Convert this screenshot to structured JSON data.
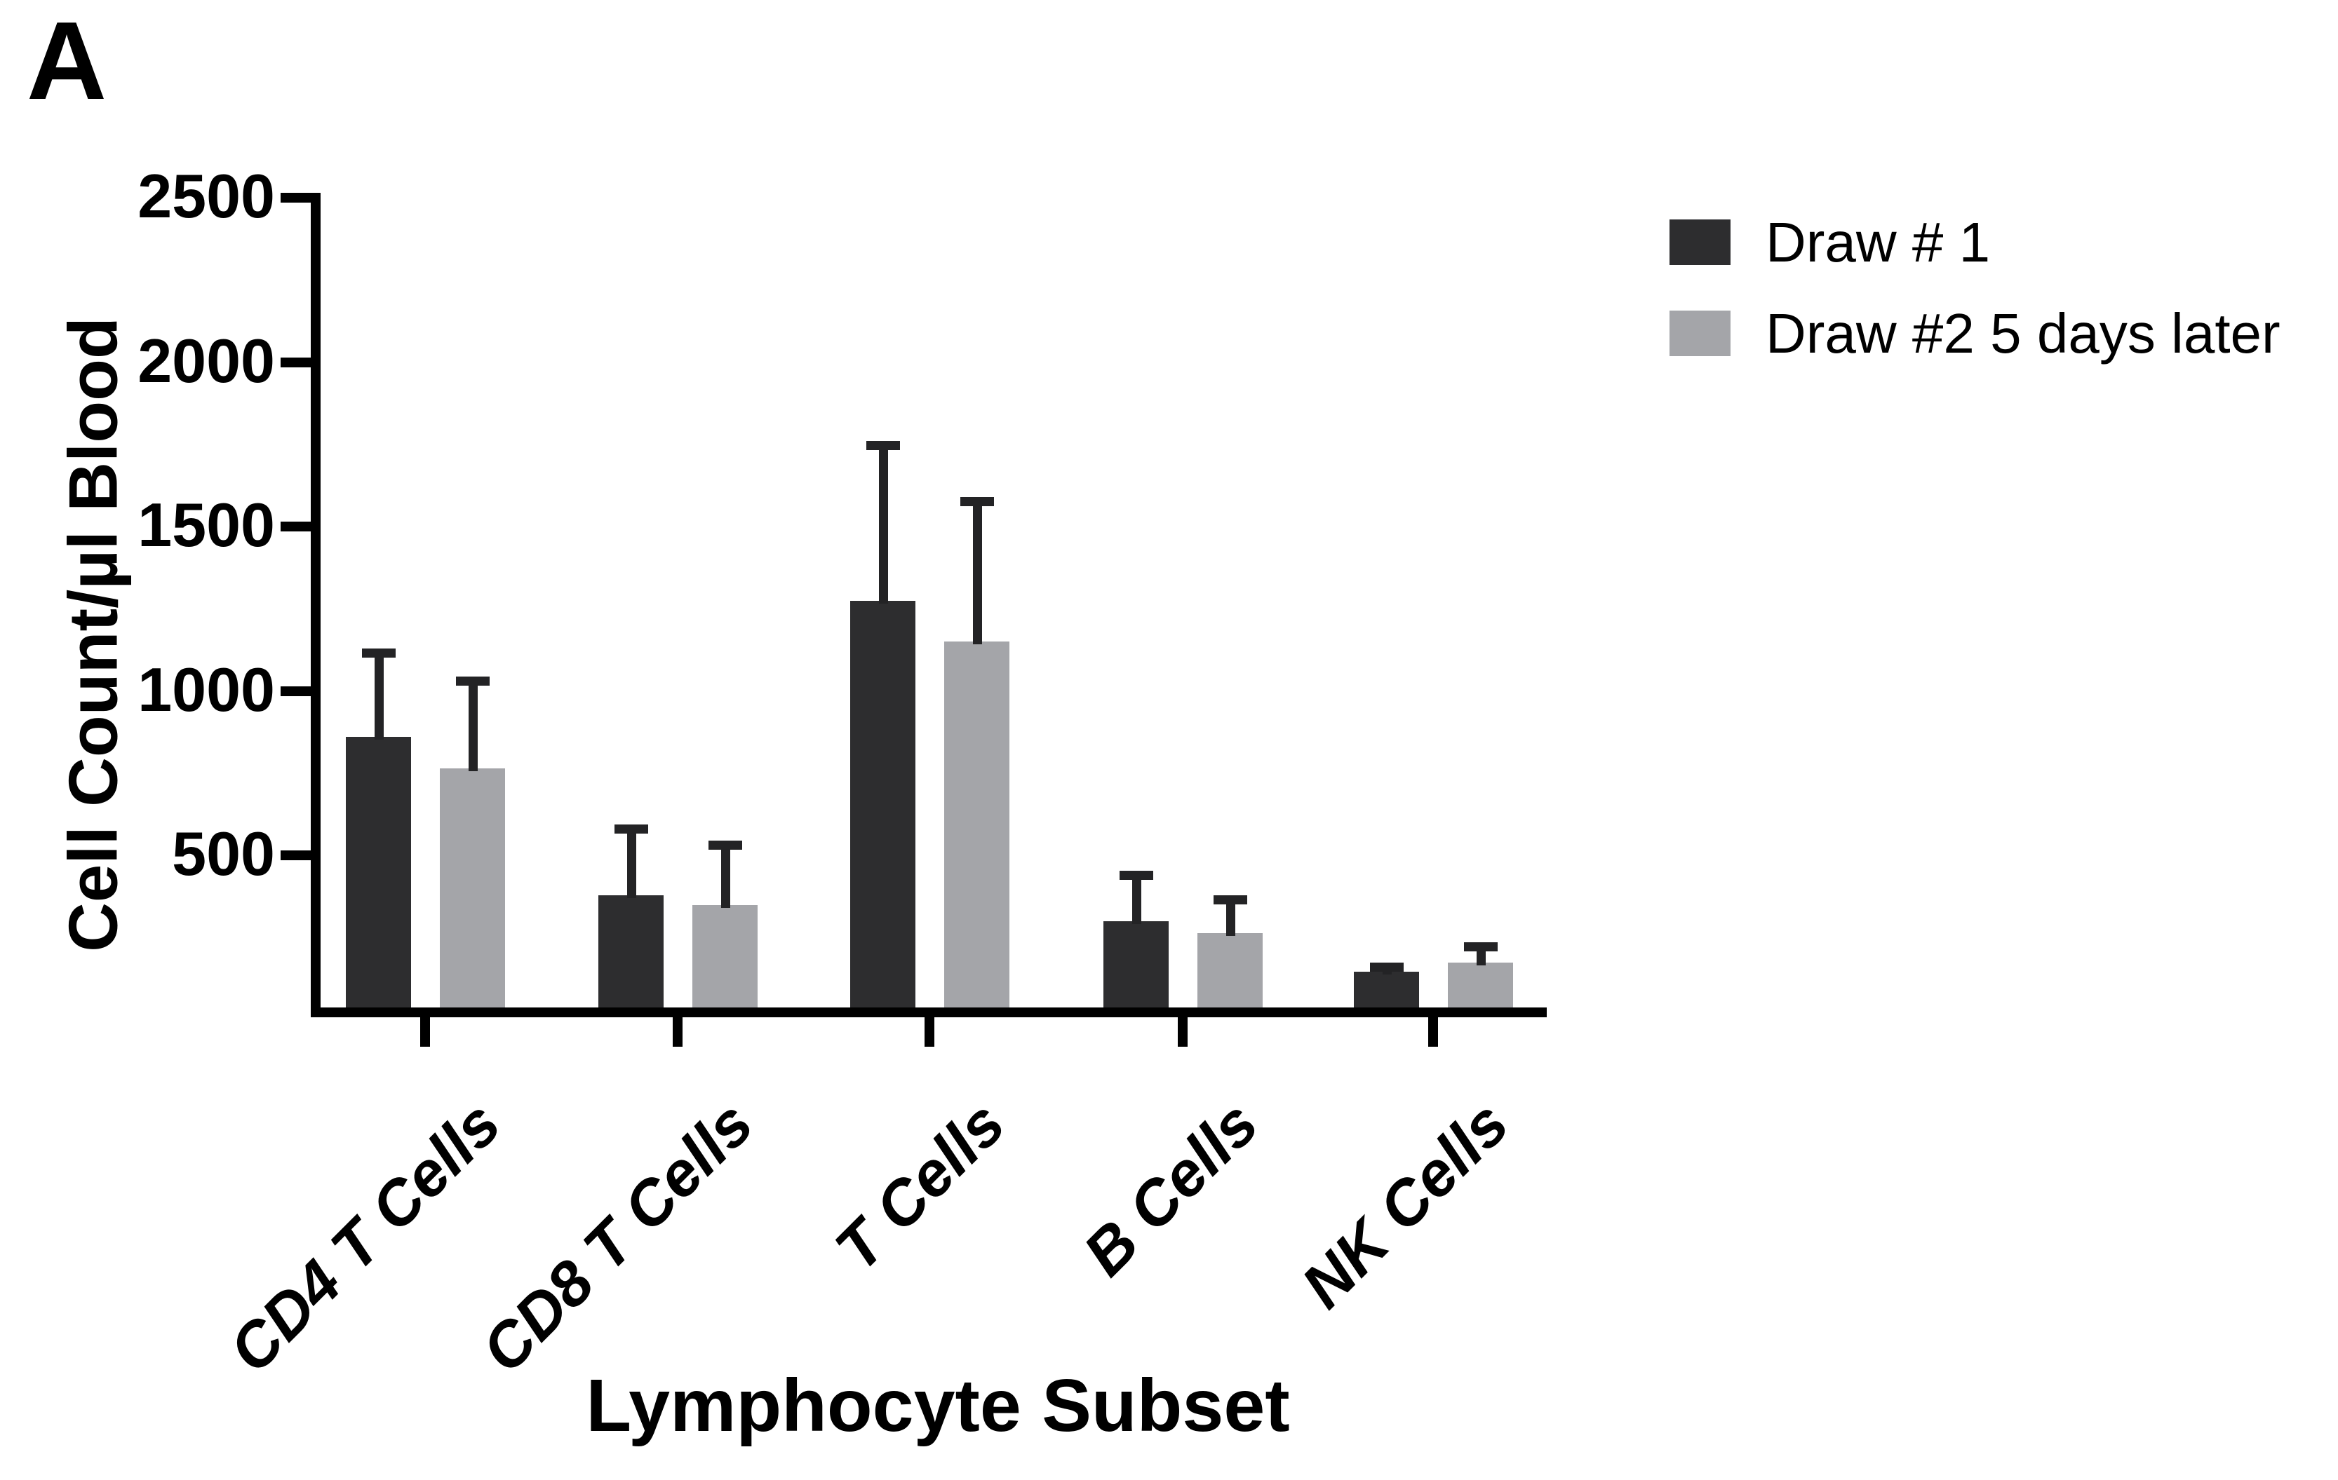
{
  "panel_label": "A",
  "legend": {
    "items": [
      {
        "label": "Draw # 1",
        "color": "#2D2D2F"
      },
      {
        "label": "Draw #2 5 days later",
        "color": "#A4A5A9"
      }
    ]
  },
  "chart_data": {
    "type": "bar",
    "title": "",
    "xlabel": "Lymphocyte Subset",
    "ylabel": "Cell Count/µl Blood",
    "ylim": [
      0,
      2500
    ],
    "yticks": [
      500,
      1000,
      1500,
      2000,
      2500
    ],
    "grid": false,
    "legend_position": "top-right",
    "error_bars": "upper SD",
    "categories": [
      "CD4 T Cells",
      "CD8 T Cells",
      "T Cells",
      "B Cells",
      "NK Cells"
    ],
    "series": [
      {
        "name": "Draw # 1",
        "color": "#2D2D2F",
        "values": [
          860,
          380,
          1275,
          300,
          148
        ],
        "error_up": [
          270,
          215,
          485,
          155,
          27
        ]
      },
      {
        "name": "Draw #2 5 days later",
        "color": "#A4A5A9",
        "values": [
          765,
          350,
          1150,
          265,
          175
        ],
        "error_up": [
          280,
          195,
          440,
          115,
          62
        ]
      }
    ]
  }
}
